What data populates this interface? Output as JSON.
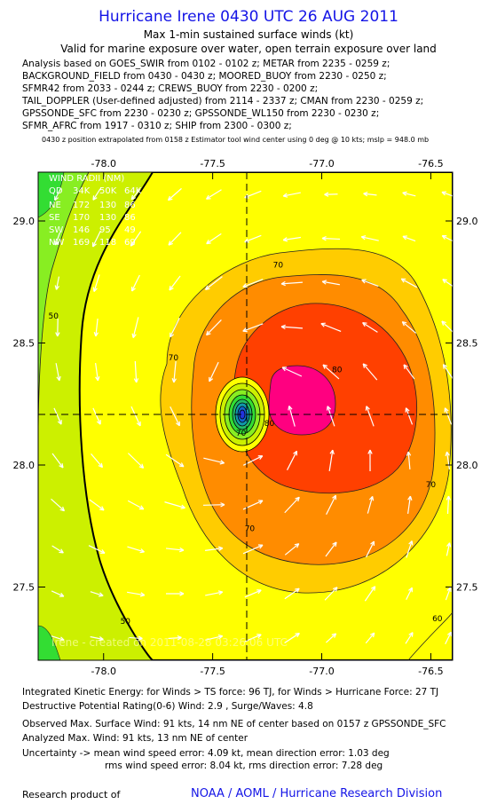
{
  "header": {
    "title": "Hurricane Irene 0430 UTC 26 AUG 2011",
    "subtitle1": "Max 1-min sustained surface winds (kt)",
    "subtitle2": "Valid for marine exposure over water, open terrain exposure over land"
  },
  "analysis_lines": [
    "Analysis based on GOES_SWIR from 0102 - 0102 z; METAR from 2235 - 0259 z;",
    "BACKGROUND_FIELD from 0430 - 0430 z; MOORED_BUOY from 2230 - 0250 z;",
    "SFMR42 from 2033 - 0244 z; CREWS_BUOY from 2230 - 0200 z;",
    "TAIL_DOPPLER (User-defined adjusted) from 2114 - 2337 z; CMAN from 2230 - 0259 z;",
    "GPSSONDE_SFC from 2230 - 0230 z; GPSSONDE_WL150 from 2230 - 0230 z;",
    "SFMR_AFRC from 1917 - 0310 z; SHIP from 2300 - 0300 z;"
  ],
  "position_note": "0430 z position extrapolated from 0158 z Estimator tool wind center using 0 deg @ 10 kts; mslp = 948.0 mb",
  "chart_data": {
    "type": "heatmap",
    "description_field": "Max 1-min sustained surface winds (kt)",
    "xlim": [
      -78.3,
      -76.4
    ],
    "ylim": [
      27.2,
      29.2
    ],
    "x_ticks": [
      "-78.0",
      "-77.5",
      "-77.0",
      "-76.5"
    ],
    "x_tick_values": [
      -78.0,
      -77.5,
      -77.0,
      -76.5
    ],
    "y_ticks": [
      "27.5",
      "28.0",
      "28.5",
      "29.0"
    ],
    "y_tick_values": [
      27.5,
      28.0,
      28.5,
      29.0
    ],
    "center": {
      "lon": -77.33,
      "lat": 28.22
    },
    "contour_labels": [
      {
        "text": "50",
        "lon": -78.23,
        "lat": 28.6
      },
      {
        "text": "50",
        "lon": -77.9,
        "lat": 27.35
      },
      {
        "text": "60",
        "lon": -76.47,
        "lat": 27.36
      },
      {
        "text": "70",
        "lon": -77.2,
        "lat": 28.81
      },
      {
        "text": "70",
        "lon": -77.68,
        "lat": 28.43
      },
      {
        "text": "70",
        "lon": -77.37,
        "lat": 28.12
      },
      {
        "text": "70",
        "lon": -77.33,
        "lat": 27.73
      },
      {
        "text": "70",
        "lon": -76.5,
        "lat": 27.91
      },
      {
        "text": "80",
        "lon": -76.93,
        "lat": 28.38
      },
      {
        "text": "80",
        "lon": -77.24,
        "lat": 28.16
      }
    ],
    "wind_radii": {
      "title": "WIND RADII (NM)",
      "columns": [
        "QD",
        "34K",
        "50K",
        "64K"
      ],
      "rows": [
        [
          "NE",
          "172",
          "130",
          "86"
        ],
        [
          "SE",
          "170",
          "130",
          "86"
        ],
        [
          "SW",
          "146",
          "95",
          "49"
        ],
        [
          "NW",
          "169",
          "118",
          "69"
        ]
      ]
    },
    "watermark": "Irene - created on 2011-08-28 03:26:06 UTC",
    "colors": {
      "lt30": "#33dd33",
      "30_40": "#88ee22",
      "40_50": "#ccf000",
      "50_64": "#ffff00",
      "64_70": "#ffcc00",
      "70_80": "#ff8c00",
      "80_90": "#ff4000",
      "90_100": "#ff0080",
      "arrows": "#ffffff"
    }
  },
  "footer": {
    "ike": "Integrated Kinetic Energy:  for Winds > TS force: 96 TJ,  for Winds > Hurricane Force: 27 TJ",
    "dpr": "Destructive Potential Rating(0-6)   Wind: 2.9 , Surge/Waves: 4.8",
    "obs_max": "Observed Max. Surface Wind: 91 kts, 14 nm NE of center based on 0157 z GPSSONDE_SFC",
    "analyzed_max": "Analyzed Max. Wind: 91 kts, 13 nm NE of center",
    "uncertainty1": "Uncertainty -> mean wind speed error: 4.09 kt,   mean direction error: 1.03 deg",
    "uncertainty2": "rms wind speed error: 8.04 kt,   rms direction error: 7.28 deg",
    "credit": "Research product of",
    "org": "NOAA / AOML / Hurricane Research Division"
  }
}
